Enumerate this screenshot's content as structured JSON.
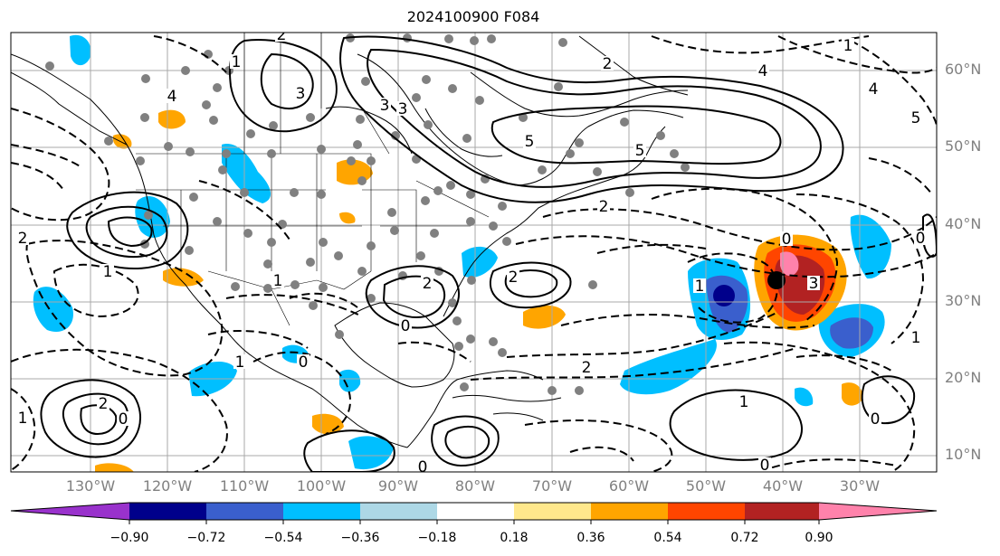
{
  "title": "2024100900 F084",
  "lat_labels": [
    "60°N",
    "50°N",
    "40°N",
    "30°N",
    "20°N",
    "10°N"
  ],
  "lon_labels": [
    "130°W",
    "120°W",
    "110°W",
    "100°W",
    "90°W",
    "80°W",
    "70°W",
    "60°W",
    "50°W",
    "40°W",
    "30°W"
  ],
  "colorbar": {
    "ticks": [
      "−0.90",
      "−0.72",
      "−0.54",
      "−0.36",
      "−0.18",
      "0.18",
      "0.36",
      "0.54",
      "0.72",
      "0.90"
    ],
    "colors": [
      "#9932cc",
      "#00008b",
      "#3a5fcd",
      "#00bfff",
      "#add8e6",
      "#ffffff",
      "#ffe88c",
      "#ffa500",
      "#ff4500",
      "#b22222",
      "#ff82ab"
    ]
  },
  "contour_labels": [
    {
      "text": "2"
    },
    {
      "text": "3"
    },
    {
      "text": "4"
    },
    {
      "text": "5"
    },
    {
      "text": "5"
    },
    {
      "text": "3"
    },
    {
      "text": "2"
    },
    {
      "text": "2"
    },
    {
      "text": "1"
    },
    {
      "text": "2"
    },
    {
      "text": "0"
    },
    {
      "text": "1"
    },
    {
      "text": "2"
    },
    {
      "text": "2"
    },
    {
      "text": "0"
    },
    {
      "text": "1"
    },
    {
      "text": "1"
    },
    {
      "text": "0"
    },
    {
      "text": "0"
    },
    {
      "text": "2"
    },
    {
      "text": "1"
    },
    {
      "text": "3"
    },
    {
      "text": "0"
    },
    {
      "text": "1"
    },
    {
      "text": "2"
    },
    {
      "text": "4"
    },
    {
      "text": "5"
    },
    {
      "text": "3"
    },
    {
      "text": "4"
    },
    {
      "text": "0"
    },
    {
      "text": "1"
    },
    {
      "text": "1"
    },
    {
      "text": "0"
    },
    {
      "text": "1"
    },
    {
      "text": "0"
    }
  ]
}
